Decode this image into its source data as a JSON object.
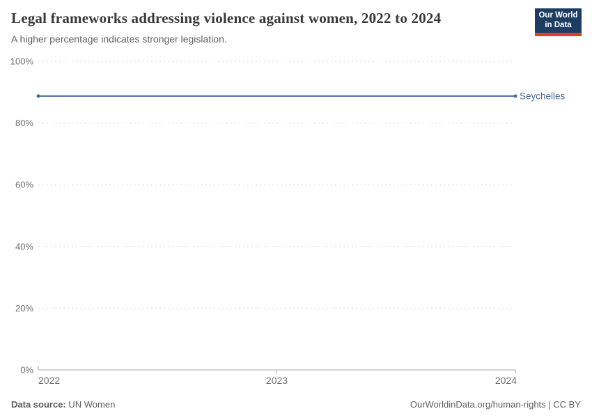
{
  "header": {
    "title": "Legal frameworks addressing violence against women, 2022 to 2024",
    "subtitle": "A higher percentage indicates stronger legislation."
  },
  "logo": {
    "line1": "Our World",
    "line2": "in Data",
    "bg_color": "#1d3d63",
    "accent_color": "#dc3e32"
  },
  "chart_data": {
    "type": "line",
    "title": "Legal frameworks addressing violence against women, 2022 to 2024",
    "x": [
      2022,
      2023,
      2024
    ],
    "series": [
      {
        "name": "Seychelles",
        "values": [
          88.75,
          88.75,
          88.75
        ],
        "color": "#4C6A9C"
      }
    ],
    "xlabel": "",
    "ylabel": "",
    "ylim": [
      0,
      100
    ],
    "yticks": [
      0,
      20,
      40,
      60,
      80,
      100
    ],
    "ytick_format": "{}%",
    "xticks": [
      2022,
      2023,
      2024
    ],
    "grid": "dashed-horizontal",
    "grid_color": "#dcdcdc",
    "axis_color": "#a8a8a8",
    "legend": "end-of-line-label"
  },
  "footer": {
    "source_label": "Data source:",
    "source_value": "UN Women",
    "license": "OurWorldinData.org/human-rights | CC BY"
  }
}
